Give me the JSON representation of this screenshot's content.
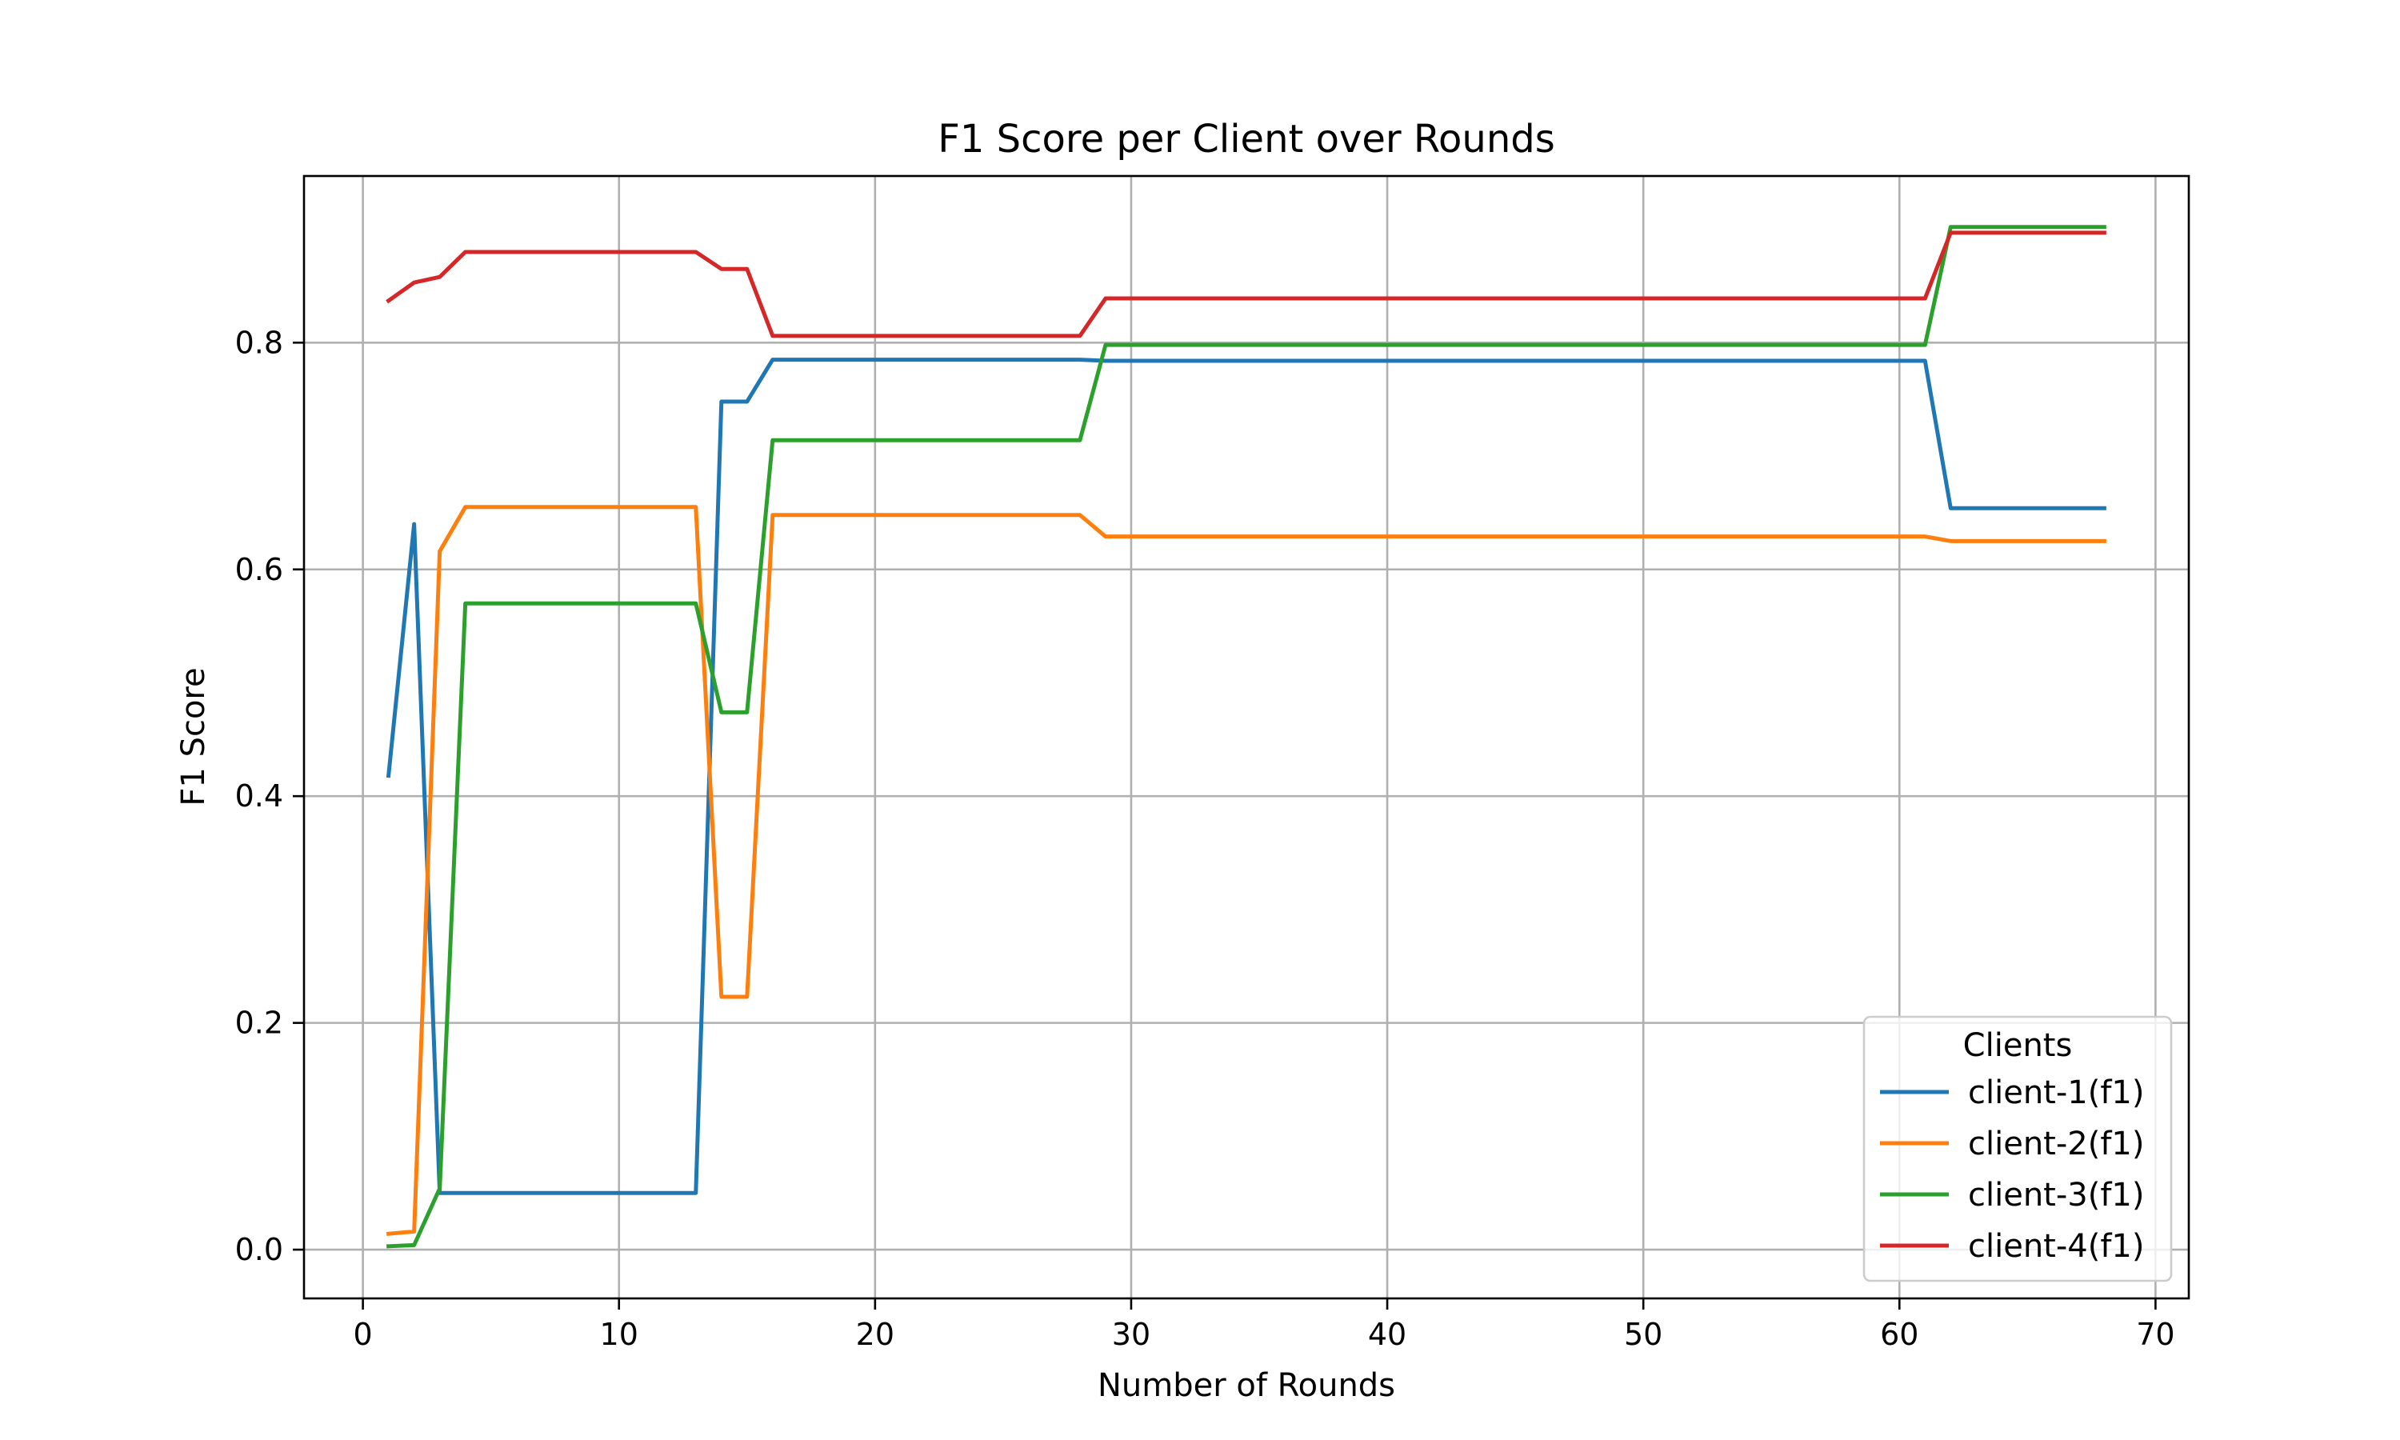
{
  "chart_data": {
    "type": "line",
    "title": "F1 Score per Client over Rounds",
    "xlabel": "Number of Rounds",
    "ylabel": "F1 Score",
    "xlim": [
      -2.3,
      71.3
    ],
    "ylim": [
      -0.043,
      0.947
    ],
    "xticks": [
      "0",
      "10",
      "20",
      "30",
      "40",
      "50",
      "60",
      "70"
    ],
    "yticks": [
      "0.0",
      "0.2",
      "0.4",
      "0.6",
      "0.8"
    ],
    "grid": true,
    "legend": {
      "title": "Clients",
      "placement": "lower right"
    },
    "x": [
      1,
      2,
      3,
      4,
      5,
      6,
      7,
      8,
      9,
      10,
      11,
      12,
      13,
      14,
      15,
      16,
      17,
      18,
      19,
      20,
      21,
      22,
      23,
      24,
      25,
      26,
      27,
      28,
      29,
      30,
      31,
      32,
      33,
      34,
      35,
      36,
      37,
      38,
      39,
      40,
      41,
      42,
      43,
      44,
      45,
      46,
      47,
      48,
      49,
      50,
      51,
      52,
      53,
      54,
      55,
      56,
      57,
      58,
      59,
      60,
      61,
      62,
      63,
      64,
      65,
      66,
      67,
      68
    ],
    "series": [
      {
        "name": "client-1(f1)",
        "color": "#1f77b4",
        "values": [
          0.418,
          0.64,
          0.05,
          0.05,
          0.05,
          0.05,
          0.05,
          0.05,
          0.05,
          0.05,
          0.05,
          0.05,
          0.05,
          0.748,
          0.748,
          0.785,
          0.785,
          0.785,
          0.785,
          0.785,
          0.785,
          0.785,
          0.785,
          0.785,
          0.785,
          0.785,
          0.785,
          0.785,
          0.784,
          0.784,
          0.784,
          0.784,
          0.784,
          0.784,
          0.784,
          0.784,
          0.784,
          0.784,
          0.784,
          0.784,
          0.784,
          0.784,
          0.784,
          0.784,
          0.784,
          0.784,
          0.784,
          0.784,
          0.784,
          0.784,
          0.784,
          0.784,
          0.784,
          0.784,
          0.784,
          0.784,
          0.784,
          0.784,
          0.784,
          0.784,
          0.784,
          0.654,
          0.654,
          0.654,
          0.654,
          0.654,
          0.654,
          0.654
        ]
      },
      {
        "name": "client-2(f1)",
        "color": "#ff7f0e",
        "values": [
          0.014,
          0.016,
          0.616,
          0.655,
          0.655,
          0.655,
          0.655,
          0.655,
          0.655,
          0.655,
          0.655,
          0.655,
          0.655,
          0.223,
          0.223,
          0.648,
          0.648,
          0.648,
          0.648,
          0.648,
          0.648,
          0.648,
          0.648,
          0.648,
          0.648,
          0.648,
          0.648,
          0.648,
          0.629,
          0.629,
          0.629,
          0.629,
          0.629,
          0.629,
          0.629,
          0.629,
          0.629,
          0.629,
          0.629,
          0.629,
          0.629,
          0.629,
          0.629,
          0.629,
          0.629,
          0.629,
          0.629,
          0.629,
          0.629,
          0.629,
          0.629,
          0.629,
          0.629,
          0.629,
          0.629,
          0.629,
          0.629,
          0.629,
          0.629,
          0.629,
          0.629,
          0.625,
          0.625,
          0.625,
          0.625,
          0.625,
          0.625,
          0.625
        ]
      },
      {
        "name": "client-3(f1)",
        "color": "#2ca02c",
        "values": [
          0.003,
          0.004,
          0.054,
          0.57,
          0.57,
          0.57,
          0.57,
          0.57,
          0.57,
          0.57,
          0.57,
          0.57,
          0.57,
          0.474,
          0.474,
          0.714,
          0.714,
          0.714,
          0.714,
          0.714,
          0.714,
          0.714,
          0.714,
          0.714,
          0.714,
          0.714,
          0.714,
          0.714,
          0.798,
          0.798,
          0.798,
          0.798,
          0.798,
          0.798,
          0.798,
          0.798,
          0.798,
          0.798,
          0.798,
          0.798,
          0.798,
          0.798,
          0.798,
          0.798,
          0.798,
          0.798,
          0.798,
          0.798,
          0.798,
          0.798,
          0.798,
          0.798,
          0.798,
          0.798,
          0.798,
          0.798,
          0.798,
          0.798,
          0.798,
          0.798,
          0.798,
          0.902,
          0.902,
          0.902,
          0.902,
          0.902,
          0.902,
          0.902
        ]
      },
      {
        "name": "client-4(f1)",
        "color": "#d62728",
        "values": [
          0.837,
          0.853,
          0.858,
          0.88,
          0.88,
          0.88,
          0.88,
          0.88,
          0.88,
          0.88,
          0.88,
          0.88,
          0.88,
          0.865,
          0.865,
          0.806,
          0.806,
          0.806,
          0.806,
          0.806,
          0.806,
          0.806,
          0.806,
          0.806,
          0.806,
          0.806,
          0.806,
          0.806,
          0.839,
          0.839,
          0.839,
          0.839,
          0.839,
          0.839,
          0.839,
          0.839,
          0.839,
          0.839,
          0.839,
          0.839,
          0.839,
          0.839,
          0.839,
          0.839,
          0.839,
          0.839,
          0.839,
          0.839,
          0.839,
          0.839,
          0.839,
          0.839,
          0.839,
          0.839,
          0.839,
          0.839,
          0.839,
          0.839,
          0.839,
          0.839,
          0.839,
          0.897,
          0.897,
          0.897,
          0.897,
          0.897,
          0.897,
          0.897
        ]
      }
    ]
  }
}
